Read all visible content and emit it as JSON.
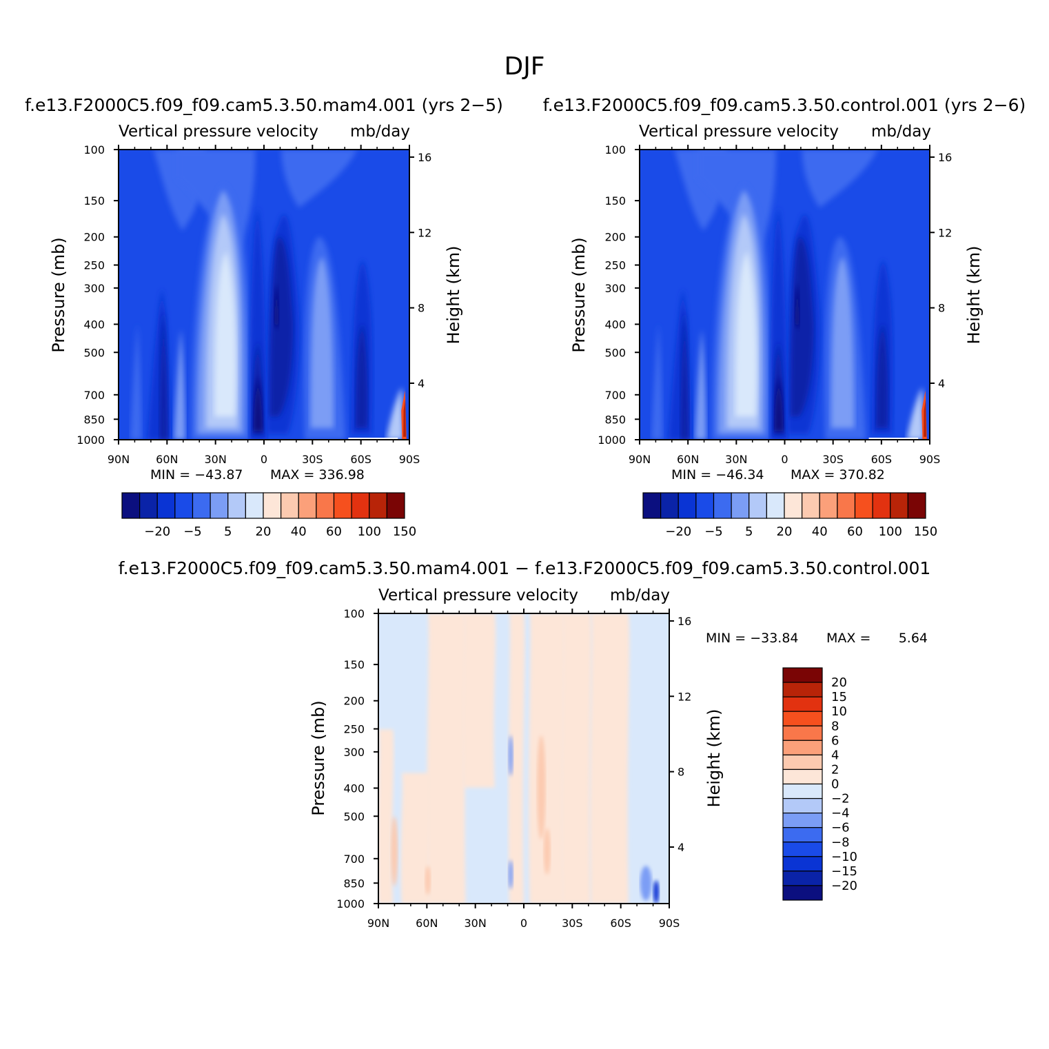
{
  "page_title": "DJF",
  "colors": {
    "blues": [
      "#0b0f7f",
      "#0a23a8",
      "#0a34d4",
      "#1a4be8",
      "#3c6bf0",
      "#7b9df5",
      "#b3c9f8",
      "#d9e8fb"
    ],
    "reds": [
      "#fde6d8",
      "#fccab0",
      "#fba07a",
      "#f9774a",
      "#f6501e",
      "#e23210",
      "#b82408",
      "#7a0505"
    ]
  },
  "chart_data": [
    {
      "id": "panel1",
      "type": "heatmap",
      "heading": "f.e13.F2000C5.f09_f09.cam5.3.50.mam4.001 (yrs 2−5)",
      "title": "Vertical pressure velocity",
      "units": "mb/day",
      "ylabel": "Pressure (mb)",
      "y2label": "Height (km)",
      "yticks": [
        "100",
        "150",
        "200",
        "250",
        "300",
        "400",
        "500",
        "700",
        "850",
        "1000"
      ],
      "y2ticks": [
        "16",
        "12",
        "8",
        "4"
      ],
      "xticks": [
        "90N",
        "60N",
        "30N",
        "0",
        "30S",
        "60S",
        "90S"
      ],
      "min_label": "MIN = −43.87",
      "max_label": "MAX = 336.98",
      "min": -43.87,
      "max": 336.98,
      "colorbar_labels": [
        "−20",
        "−5",
        "5",
        "20",
        "40",
        "60",
        "100",
        "150"
      ]
    },
    {
      "id": "panel2",
      "type": "heatmap",
      "heading": "f.e13.F2000C5.f09_f09.cam5.3.50.control.001 (yrs 2−6)",
      "title": "Vertical pressure velocity",
      "units": "mb/day",
      "ylabel": "Pressure (mb)",
      "y2label": "Height (km)",
      "yticks": [
        "100",
        "150",
        "200",
        "250",
        "300",
        "400",
        "500",
        "700",
        "850",
        "1000"
      ],
      "y2ticks": [
        "16",
        "12",
        "8",
        "4"
      ],
      "xticks": [
        "90N",
        "60N",
        "30N",
        "0",
        "30S",
        "60S",
        "90S"
      ],
      "min_label": "MIN = −46.34",
      "max_label": "MAX = 370.82",
      "min": -46.34,
      "max": 370.82,
      "colorbar_labels": [
        "−20",
        "−5",
        "5",
        "20",
        "40",
        "60",
        "100",
        "150"
      ]
    },
    {
      "id": "panel3",
      "type": "heatmap",
      "heading": "f.e13.F2000C5.f09_f09.cam5.3.50.mam4.001 − f.e13.F2000C5.f09_f09.cam5.3.50.control.001",
      "title": "Vertical pressure velocity",
      "units": "mb/day",
      "ylabel": "Pressure (mb)",
      "y2label": "Height (km)",
      "yticks": [
        "100",
        "150",
        "200",
        "250",
        "300",
        "400",
        "500",
        "700",
        "850",
        "1000"
      ],
      "y2ticks": [
        "16",
        "12",
        "8",
        "4"
      ],
      "xticks": [
        "90N",
        "60N",
        "30N",
        "0",
        "30S",
        "60S",
        "90S"
      ],
      "min_label": "MIN = −33.84",
      "max_label": "MAX =",
      "max_value": "5.64",
      "min": -33.84,
      "max": 5.64,
      "colorbar_labels": [
        "20",
        "15",
        "10",
        "8",
        "6",
        "4",
        "2",
        "0",
        "−2",
        "−4",
        "−6",
        "−8",
        "−10",
        "−15",
        "−20"
      ]
    }
  ]
}
